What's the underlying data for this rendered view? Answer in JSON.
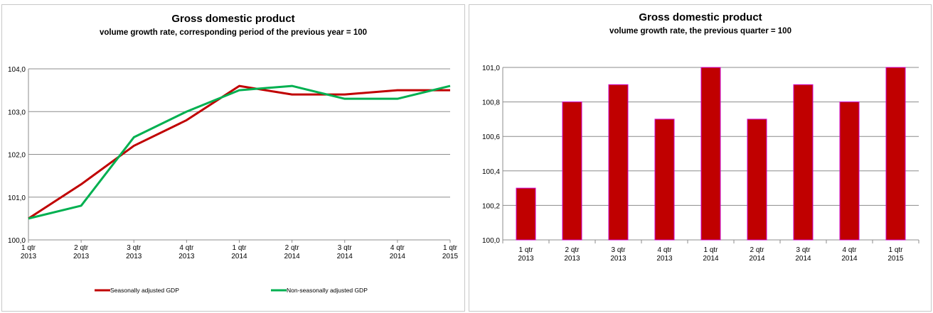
{
  "chart_data": [
    {
      "type": "line",
      "title": "Gross domestic product",
      "subtitle": "volume growth rate, corresponding period of the previous year = 100",
      "categories": [
        [
          "1 qtr",
          "2013"
        ],
        [
          "2 qtr",
          "2013"
        ],
        [
          "3 qtr",
          "2013"
        ],
        [
          "4 qtr",
          "2013"
        ],
        [
          "1 qtr",
          "2014"
        ],
        [
          "2 qtr",
          "2014"
        ],
        [
          "3 qtr",
          "2014"
        ],
        [
          "4 qtr",
          "2014"
        ],
        [
          "1 qtr",
          "2015"
        ]
      ],
      "ylim": [
        100.0,
        104.0
      ],
      "yticks": [
        "100,0",
        "101,0",
        "102,0",
        "103,0",
        "104,0"
      ],
      "grid": true,
      "legend_position": "bottom",
      "series": [
        {
          "name": "Seasonally adjusted GDP",
          "color": "#c00000",
          "values": [
            100.5,
            101.3,
            102.2,
            102.8,
            103.6,
            103.4,
            103.4,
            103.5,
            103.5
          ]
        },
        {
          "name": "Non-seasonally adjusted GDP",
          "color": "#00b050",
          "values": [
            100.5,
            100.8,
            102.4,
            103.0,
            103.5,
            103.6,
            103.3,
            103.3,
            103.6
          ]
        }
      ]
    },
    {
      "type": "bar",
      "title": "Gross domestic product",
      "subtitle": "volume growth rate, the previous quarter = 100",
      "categories": [
        [
          "1 qtr",
          "2013"
        ],
        [
          "2 qtr",
          "2013"
        ],
        [
          "3 qtr",
          "2013"
        ],
        [
          "4 qtr",
          "2013"
        ],
        [
          "1 qtr",
          "2014"
        ],
        [
          "2 qtr",
          "2014"
        ],
        [
          "3 qtr",
          "2014"
        ],
        [
          "4 qtr",
          "2014"
        ],
        [
          "1 qtr",
          "2015"
        ]
      ],
      "ylim": [
        100.0,
        101.0
      ],
      "yticks": [
        "100,0",
        "100,2",
        "100,4",
        "100,6",
        "100,8",
        "101,0"
      ],
      "grid": true,
      "bar_color": "#c00000",
      "bar_edge_color": "#cc00cc",
      "values": [
        100.3,
        100.8,
        100.9,
        100.7,
        101.0,
        100.7,
        100.9,
        100.8,
        101.0
      ]
    }
  ]
}
